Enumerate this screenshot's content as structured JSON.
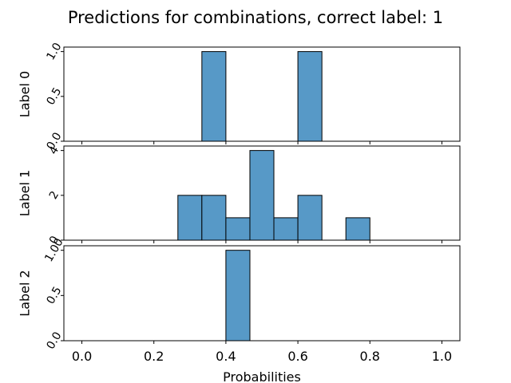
{
  "chart_data": {
    "type": "bar",
    "title": "Predictions for combinations, correct label: 1",
    "xlabel": "Probabilities",
    "xlim": [
      -0.05,
      1.05
    ],
    "xticks": [
      0.0,
      0.2,
      0.4,
      0.6,
      0.8,
      1.0
    ],
    "xtick_labels": [
      "0.0",
      "0.2",
      "0.4",
      "0.6",
      "0.8",
      "1.0"
    ],
    "bin_edges": [
      0.0,
      0.0667,
      0.1333,
      0.2,
      0.2667,
      0.3333,
      0.4,
      0.4667,
      0.5333,
      0.6,
      0.6667,
      0.7333,
      0.8,
      0.8667,
      0.9333,
      1.0
    ],
    "bar_color": "#5799c7",
    "grid": false,
    "subplots": [
      {
        "ylabel": "Label 0",
        "ylim": [
          0,
          1.05
        ],
        "yticks": [
          0,
          0.5,
          1.0
        ],
        "ytick_labels": [
          "0.0",
          "0.5",
          "1.0"
        ],
        "counts": [
          0,
          0,
          0,
          0,
          0,
          1,
          0,
          0,
          0,
          1,
          0,
          0,
          0,
          0,
          0
        ]
      },
      {
        "ylabel": "Label 1",
        "ylim": [
          0,
          4.2
        ],
        "yticks": [
          0,
          2,
          4
        ],
        "ytick_labels": [
          "0",
          "2",
          "4"
        ],
        "counts": [
          0,
          0,
          0,
          0,
          2,
          2,
          1,
          4,
          1,
          2,
          0,
          1,
          0,
          0,
          0
        ]
      },
      {
        "ylabel": "Label 2",
        "ylim": [
          0,
          1.05
        ],
        "yticks": [
          0,
          0.5,
          1.0
        ],
        "ytick_labels": [
          "0.0",
          "0.5",
          "1.00"
        ],
        "counts": [
          0,
          0,
          0,
          0,
          0,
          0,
          1,
          0,
          0,
          0,
          0,
          0,
          0,
          0,
          0
        ]
      }
    ]
  }
}
